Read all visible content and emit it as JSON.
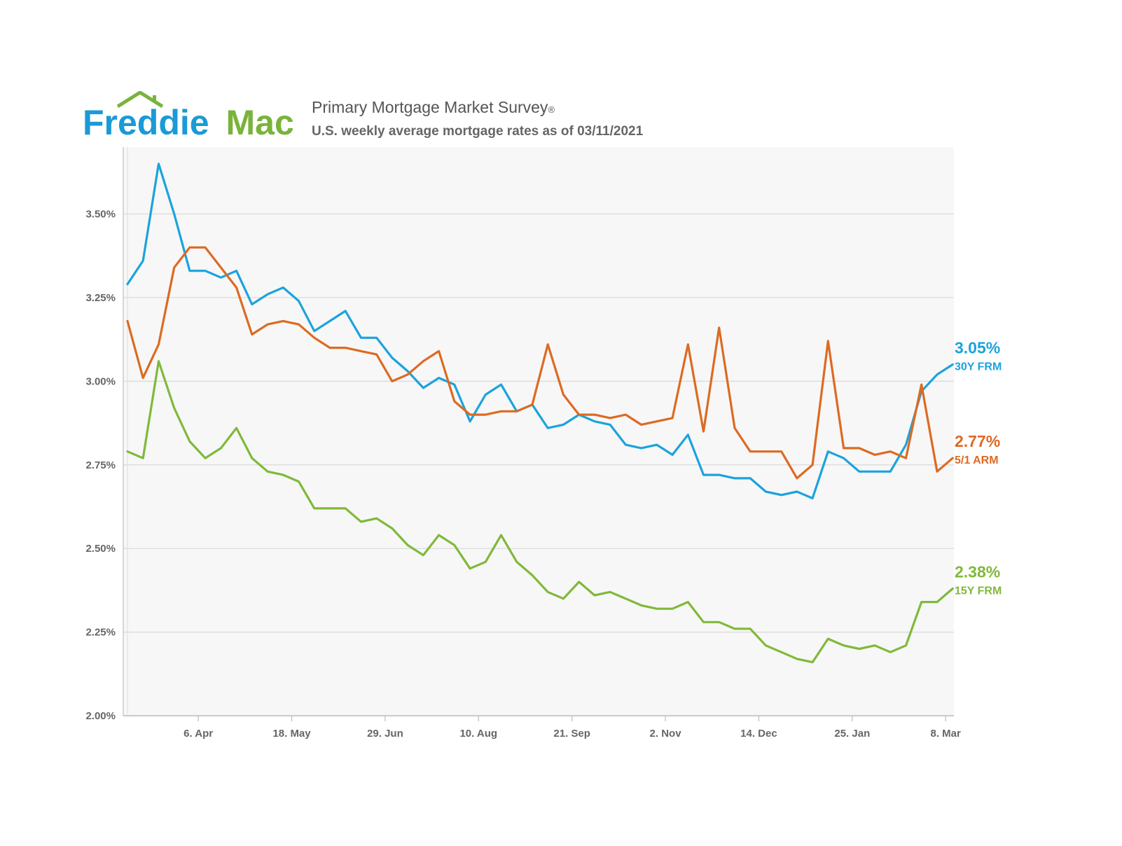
{
  "brand": {
    "logo_word1": "Freddie",
    "logo_word2": "Mac",
    "colors": {
      "word1": "#1a9ad6",
      "word2": "#7ab33c",
      "roof": "#7ab33c"
    }
  },
  "header": {
    "title": "Primary Mortgage Market Survey",
    "title_mark": "®",
    "subtitle": "U.S. weekly average mortgage rates as of 03/11/2021"
  },
  "chart_data": {
    "type": "line",
    "title": "",
    "xlabel": "",
    "ylabel": "",
    "ylim": [
      2.0,
      3.7
    ],
    "y_ticks": [
      2.0,
      2.25,
      2.5,
      2.75,
      3.0,
      3.25,
      3.5
    ],
    "y_tick_labels": [
      "2.00%",
      "2.25%",
      "2.50%",
      "2.75%",
      "3.00%",
      "3.25%",
      "3.50%"
    ],
    "x_tick_labels": [
      {
        "label": "6. Apr",
        "week": 5
      },
      {
        "label": "18. May",
        "week": 11
      },
      {
        "label": "29. Jun",
        "week": 17
      },
      {
        "label": "10. Aug",
        "week": 23
      },
      {
        "label": "21. Sep",
        "week": 29
      },
      {
        "label": "2. Nov",
        "week": 35
      },
      {
        "label": "14. Dec",
        "week": 41
      },
      {
        "label": "25. Jan",
        "week": 47
      },
      {
        "label": "8. Mar",
        "week": 53
      }
    ],
    "grid": true,
    "series": [
      {
        "name": "30Y FRM",
        "end_label": "3.05%",
        "color": "#1ba3dd",
        "values": [
          3.29,
          3.36,
          3.65,
          3.5,
          3.33,
          3.33,
          3.31,
          3.33,
          3.23,
          3.26,
          3.28,
          3.24,
          3.15,
          3.18,
          3.21,
          3.13,
          3.13,
          3.07,
          3.03,
          2.98,
          3.01,
          2.99,
          2.88,
          2.96,
          2.99,
          2.91,
          2.93,
          2.86,
          2.87,
          2.9,
          2.88,
          2.87,
          2.81,
          2.8,
          2.81,
          2.78,
          2.84,
          2.72,
          2.72,
          2.71,
          2.71,
          2.67,
          2.66,
          2.67,
          2.65,
          2.79,
          2.77,
          2.73,
          2.73,
          2.73,
          2.81,
          2.97,
          3.02,
          3.05
        ]
      },
      {
        "name": "5/1 ARM",
        "end_label": "2.77%",
        "color": "#dd6a22",
        "values": [
          3.18,
          3.01,
          3.11,
          3.34,
          3.4,
          3.4,
          3.34,
          3.28,
          3.14,
          3.17,
          3.18,
          3.17,
          3.13,
          3.1,
          3.1,
          3.09,
          3.08,
          3.0,
          3.02,
          3.06,
          3.09,
          2.94,
          2.9,
          2.9,
          2.91,
          2.91,
          2.93,
          3.11,
          2.96,
          2.9,
          2.9,
          2.89,
          2.9,
          2.87,
          2.88,
          2.89,
          3.11,
          2.85,
          3.16,
          2.86,
          2.79,
          2.79,
          2.79,
          2.71,
          2.75,
          3.12,
          2.8,
          2.8,
          2.78,
          2.79,
          2.77,
          2.99,
          2.73,
          2.77
        ]
      },
      {
        "name": "15Y FRM",
        "end_label": "2.38%",
        "color": "#80b93a",
        "values": [
          2.79,
          2.77,
          3.06,
          2.92,
          2.82,
          2.77,
          2.8,
          2.86,
          2.77,
          2.73,
          2.72,
          2.7,
          2.62,
          2.62,
          2.62,
          2.58,
          2.59,
          2.56,
          2.51,
          2.48,
          2.54,
          2.51,
          2.44,
          2.46,
          2.54,
          2.46,
          2.42,
          2.37,
          2.35,
          2.4,
          2.36,
          2.37,
          2.35,
          2.33,
          2.32,
          2.32,
          2.34,
          2.28,
          2.28,
          2.26,
          2.26,
          2.21,
          2.19,
          2.17,
          2.16,
          2.23,
          2.21,
          2.2,
          2.21,
          2.19,
          2.21,
          2.34,
          2.34,
          2.38
        ]
      }
    ]
  }
}
